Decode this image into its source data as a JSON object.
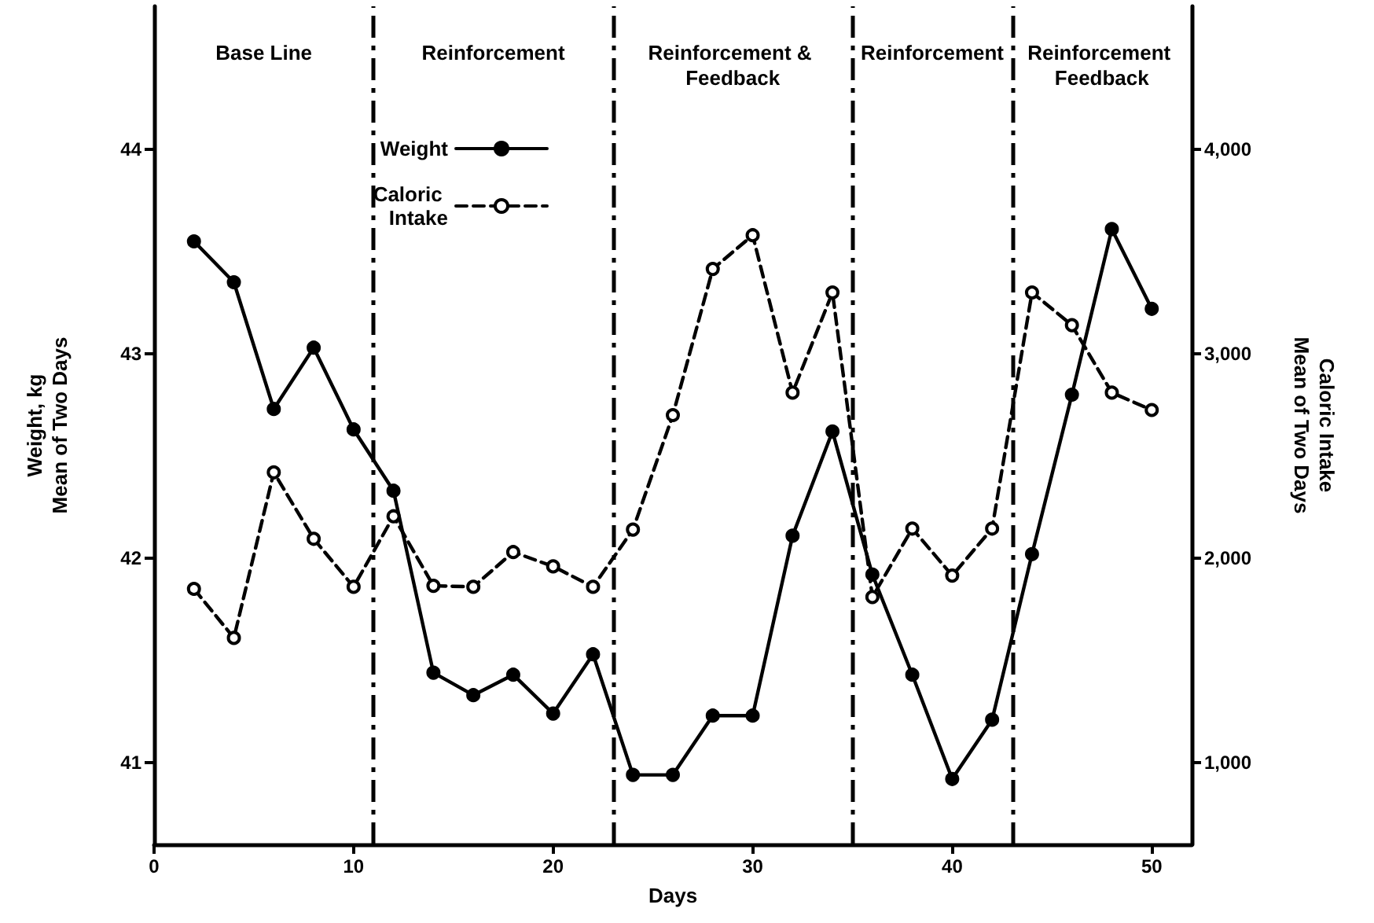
{
  "chart_data": {
    "type": "line",
    "xlabel": "Days",
    "ylabel": "Weight, kg\nMean of Two Days",
    "y2label": "Caloric Intake\nMean of Two Days",
    "x": [
      2,
      4,
      6,
      8,
      10,
      12,
      14,
      16,
      18,
      20,
      22,
      24,
      26,
      28,
      30,
      32,
      34,
      36,
      38,
      40,
      42,
      44,
      46,
      48,
      50
    ],
    "series": [
      {
        "name": "Weight",
        "color": "#000000",
        "line_style": "solid",
        "values": [
          43.55,
          43.35,
          42.73,
          43.03,
          42.63,
          42.33,
          41.44,
          41.33,
          41.43,
          41.24,
          41.53,
          40.94,
          40.94,
          41.23,
          41.23,
          42.11,
          42.62,
          41.92,
          41.43,
          40.92,
          41.21,
          42.02,
          42.8,
          43.61,
          43.22
        ]
      },
      {
        "name": "Caloric Intake",
        "color": "#000000",
        "line_style": "dashed",
        "axis": "y2",
        "values": [
          1850,
          1610,
          2420,
          2095,
          1860,
          2205,
          1865,
          1860,
          2030,
          1960,
          1860,
          2140,
          2700,
          3415,
          3580,
          2810,
          3300,
          1810,
          2145,
          1915,
          2145,
          3300,
          3140,
          2810,
          2725
        ]
      }
    ],
    "xlim": [
      0,
      52
    ],
    "xticks": [
      0,
      10,
      20,
      30,
      40,
      50
    ],
    "ylim": [
      40.6,
      44.7
    ],
    "yticks": [
      41,
      42,
      43,
      44
    ],
    "y2lim": [
      600,
      4700
    ],
    "y2ticks": [
      {
        "value": 1000,
        "label": "1,000"
      },
      {
        "value": 2000,
        "label": "2,000"
      },
      {
        "value": 3000,
        "label": "3,000"
      },
      {
        "value": 4000,
        "label": "4,000"
      }
    ],
    "ref_lines": [
      {
        "axis": "x",
        "value": 11,
        "line_style": "dashed"
      },
      {
        "axis": "x",
        "value": 23,
        "line_style": "dashed"
      },
      {
        "axis": "x",
        "value": 35,
        "line_style": "dashed"
      },
      {
        "axis": "x",
        "value": 43,
        "line_style": "dashed"
      }
    ],
    "annotations": [
      "Base Line",
      "Reinforcement",
      "Reinforcement & Feedback",
      "Reinforcement",
      "Reinforcement Feedback"
    ],
    "marker": "circle",
    "grid": false,
    "legend": "top"
  }
}
